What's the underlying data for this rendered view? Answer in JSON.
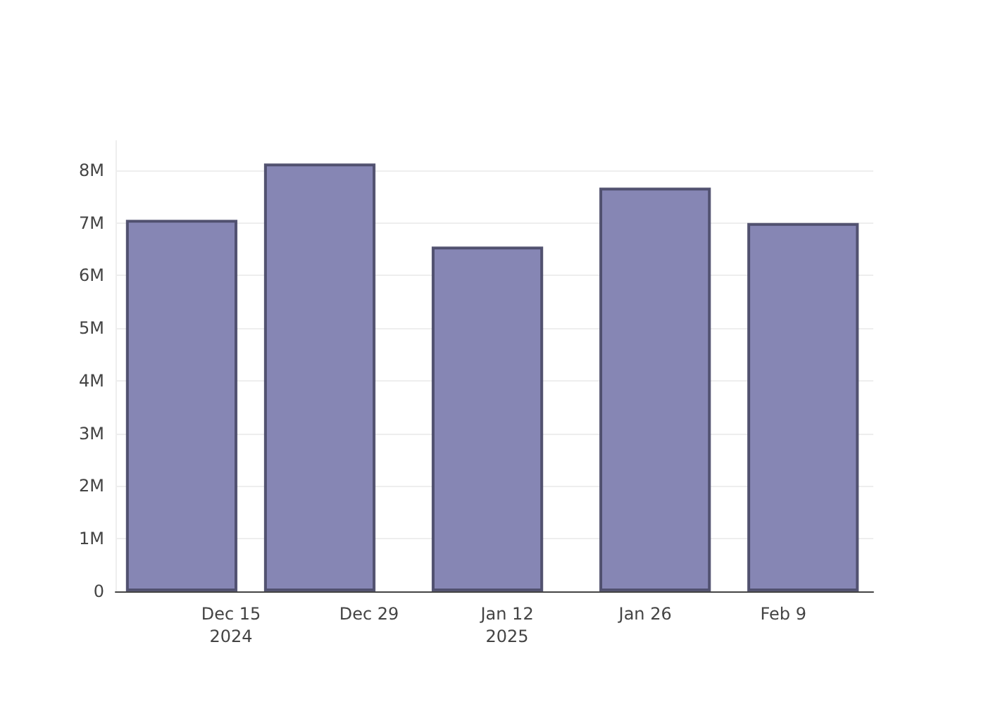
{
  "chart_data": {
    "type": "bar",
    "x": [
      "2024-12-10",
      "2024-12-24",
      "2025-01-10",
      "2025-01-27",
      "2025-02-11"
    ],
    "values": [
      7060000,
      8130000,
      6550000,
      7670000,
      7000000
    ],
    "color": "#7f7fb0",
    "xlim": [
      "2024-12-03T07:00",
      "2025-02-18T03:00"
    ],
    "xticks": [
      {
        "value": "2024-12-15",
        "label": "Dec 15\n2024"
      },
      {
        "value": "2024-12-29",
        "label": "Dec 29"
      },
      {
        "value": "2025-01-12",
        "label": "Jan 12\n2025"
      },
      {
        "value": "2025-01-26",
        "label": "Jan 26"
      },
      {
        "value": "2025-02-09",
        "label": "Feb 9"
      }
    ],
    "ylim": [
      0,
      8560000
    ],
    "yticks": [
      0,
      {
        "value": 1000000,
        "label": "1M"
      },
      {
        "value": 2000000,
        "label": "2M"
      },
      {
        "value": 3000000,
        "label": "3M"
      },
      {
        "value": 4000000,
        "label": "4M"
      },
      {
        "value": 5000000,
        "label": "5M"
      },
      {
        "value": 6000000,
        "label": "6M"
      },
      {
        "value": 7000000,
        "label": "7M"
      },
      {
        "value": 8000000,
        "label": "8M"
      }
    ],
    "grid": "y"
  }
}
